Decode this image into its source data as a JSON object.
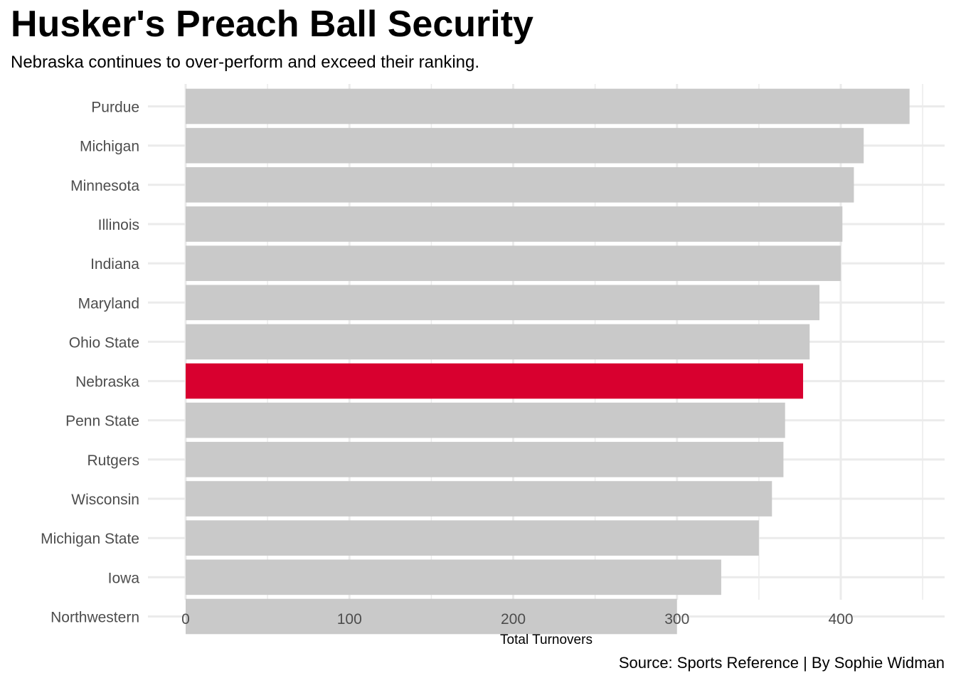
{
  "title": "Husker's Preach Ball Security",
  "subtitle": "Nebraska continues to over-perform and exceed their ranking.",
  "caption": "Source: Sports Reference | By Sophie Widman",
  "colors": {
    "highlight": "#d8002f",
    "bar": "#c9c9c9",
    "grid": "#ebebeb"
  },
  "chart_data": {
    "type": "bar",
    "orientation": "horizontal",
    "categories": [
      "Purdue",
      "Michigan",
      "Minnesota",
      "Illinois",
      "Indiana",
      "Maryland",
      "Ohio State",
      "Nebraska",
      "Penn State",
      "Rutgers",
      "Wisconsin",
      "Michigan State",
      "Iowa",
      "Northwestern"
    ],
    "values": [
      442,
      414,
      408,
      401,
      400,
      387,
      381,
      377,
      366,
      365,
      358,
      350,
      327,
      300
    ],
    "highlight": "Nebraska",
    "xlabel": "Total Turnovers",
    "ylabel": "",
    "xlim": [
      0,
      450
    ],
    "xticks": [
      0,
      100,
      200,
      300,
      400
    ],
    "grid": true
  }
}
